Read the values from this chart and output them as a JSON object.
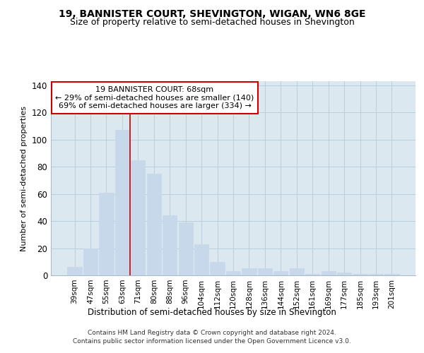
{
  "title1": "19, BANNISTER COURT, SHEVINGTON, WIGAN, WN6 8GE",
  "title2": "Size of property relative to semi-detached houses in Shevington",
  "xlabel": "Distribution of semi-detached houses by size in Shevington",
  "ylabel": "Number of semi-detached properties",
  "footer1": "Contains HM Land Registry data © Crown copyright and database right 2024.",
  "footer2": "Contains public sector information licensed under the Open Government Licence v3.0.",
  "annotation_title": "19 BANNISTER COURT: 68sqm",
  "annotation_line1": "← 29% of semi-detached houses are smaller (140)",
  "annotation_line2": "69% of semi-detached houses are larger (334) →",
  "bar_color": "#c8d8eb",
  "bar_edge_color": "#c8d8eb",
  "grid_color": "#b8cfe0",
  "bg_color": "#dce8f0",
  "vline_color": "#cc0000",
  "vline_x_index": 4,
  "categories": [
    "39sqm",
    "47sqm",
    "55sqm",
    "63sqm",
    "71sqm",
    "80sqm",
    "88sqm",
    "96sqm",
    "104sqm",
    "112sqm",
    "120sqm",
    "128sqm",
    "136sqm",
    "144sqm",
    "152sqm",
    "161sqm",
    "169sqm",
    "177sqm",
    "185sqm",
    "193sqm",
    "201sqm"
  ],
  "values": [
    6,
    20,
    61,
    107,
    85,
    75,
    44,
    39,
    23,
    10,
    3,
    5,
    5,
    3,
    5,
    1,
    3,
    2,
    1,
    1,
    1
  ],
  "ylim": [
    0,
    143
  ],
  "yticks": [
    0,
    20,
    40,
    60,
    80,
    100,
    120,
    140
  ]
}
